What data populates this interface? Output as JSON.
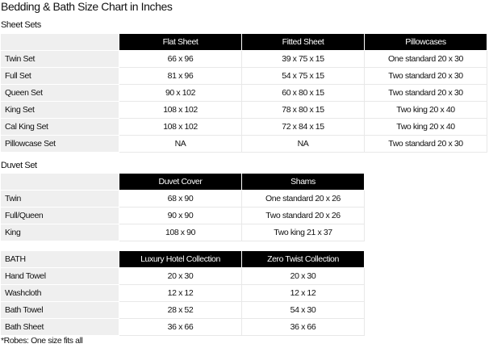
{
  "title": "Bedding & Bath Size Chart in Inches",
  "sheet_sets": {
    "label": "Sheet Sets",
    "corner": "",
    "headers": [
      "Flat Sheet",
      "Fitted Sheet",
      "Pillowcases"
    ],
    "rows": [
      [
        "Twin Set",
        "66 x 96",
        "39 x 75 x 15",
        "One standard 20 x 30"
      ],
      [
        "Full Set",
        "81 x 96",
        "54 x 75 x 15",
        "Two standard 20 x 30"
      ],
      [
        "Queen Set",
        "90 x 102",
        "60 x 80 x 15",
        "Two standard 20 x 30"
      ],
      [
        "King Set",
        "108 x 102",
        "78 x 80 x 15",
        "Two king 20 x 40"
      ],
      [
        "Cal King Set",
        "108 x 102",
        "72 x 84 x 15",
        "Two king 20 x 40"
      ],
      [
        "Pillowcase Set",
        "NA",
        "NA",
        "Two standard 20 x 30"
      ]
    ]
  },
  "duvet_set": {
    "label": "Duvet Set",
    "corner": "",
    "headers": [
      "Duvet Cover",
      "Shams"
    ],
    "rows": [
      [
        "Twin",
        "68 x 90",
        "One standard 20 x 26"
      ],
      [
        "Full/Queen",
        "90 x 90",
        "Two standard 20 x 26"
      ],
      [
        "King",
        "108 x 90",
        "Two king 21 x 37"
      ]
    ]
  },
  "bath": {
    "corner": "BATH",
    "headers": [
      "Luxury Hotel Collection",
      "Zero Twist Collection"
    ],
    "rows": [
      [
        "Hand Towel",
        "20 x 30",
        "20 x 30"
      ],
      [
        "Washcloth",
        "12 x 12",
        "12 x 12"
      ],
      [
        "Bath Towel",
        "28 x 52",
        "54 x 30"
      ],
      [
        "Bath Sheet",
        "36 x 66",
        "36 x 66"
      ]
    ]
  },
  "footnote": "*Robes: One size fits all"
}
